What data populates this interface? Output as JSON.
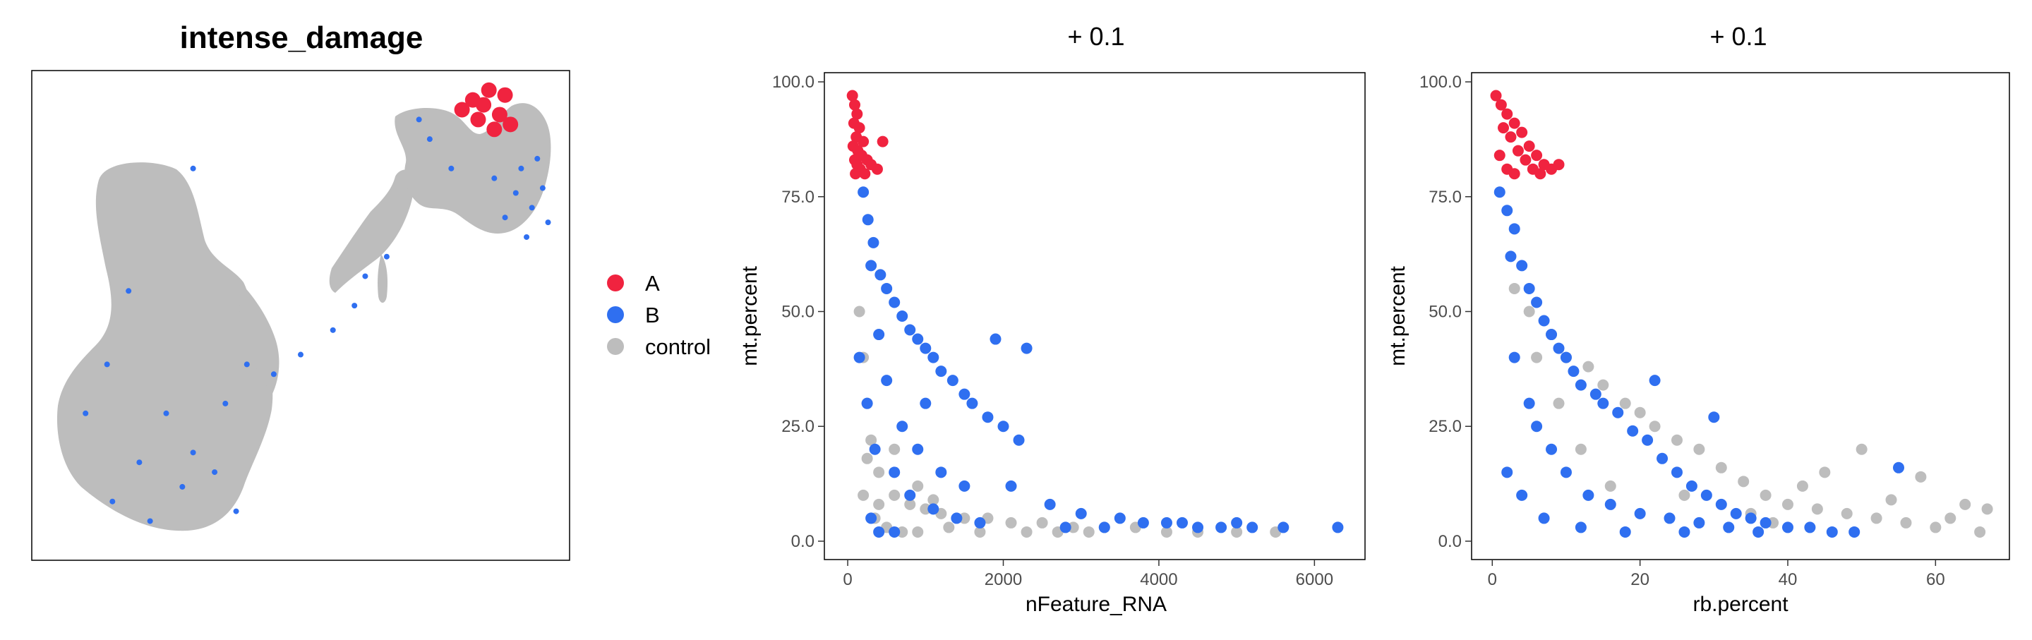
{
  "chart_data": [
    {
      "type": "scatter",
      "title": "intense_damage",
      "xlabel": "",
      "ylabel": "",
      "axes_visible": false,
      "legend_position": "right",
      "description_kind": "UMAP embedding",
      "series": [
        {
          "name": "A",
          "color": "#F0233F",
          "shape": "blob",
          "points": [
            [
              0.82,
              0.94
            ],
            [
              0.85,
              0.96
            ],
            [
              0.88,
              0.95
            ],
            [
              0.83,
              0.9
            ],
            [
              0.87,
              0.91
            ],
            [
              0.8,
              0.92
            ],
            [
              0.86,
              0.88
            ],
            [
              0.89,
              0.89
            ],
            [
              0.84,
              0.93
            ]
          ]
        },
        {
          "name": "B",
          "color": "#2F6FF0",
          "shape": "scatter",
          "points": [
            [
              0.9,
              0.75
            ],
            [
              0.93,
              0.72
            ],
            [
              0.95,
              0.76
            ],
            [
              0.88,
              0.7
            ],
            [
              0.92,
              0.66
            ],
            [
              0.96,
              0.69
            ],
            [
              0.86,
              0.78
            ],
            [
              0.91,
              0.8
            ],
            [
              0.94,
              0.82
            ],
            [
              0.78,
              0.8
            ],
            [
              0.74,
              0.86
            ],
            [
              0.72,
              0.9
            ],
            [
              0.66,
              0.62
            ],
            [
              0.62,
              0.58
            ],
            [
              0.6,
              0.52
            ],
            [
              0.56,
              0.47
            ],
            [
              0.5,
              0.42
            ],
            [
              0.45,
              0.38
            ],
            [
              0.4,
              0.4
            ],
            [
              0.36,
              0.32
            ],
            [
              0.3,
              0.22
            ],
            [
              0.28,
              0.15
            ],
            [
              0.2,
              0.2
            ],
            [
              0.15,
              0.12
            ],
            [
              0.1,
              0.3
            ],
            [
              0.22,
              0.08
            ],
            [
              0.25,
              0.3
            ],
            [
              0.34,
              0.18
            ],
            [
              0.18,
              0.55
            ],
            [
              0.3,
              0.8
            ],
            [
              0.14,
              0.4
            ],
            [
              0.38,
              0.1
            ]
          ]
        },
        {
          "name": "control",
          "color": "#BDBDBD",
          "shape": "regions"
        }
      ]
    },
    {
      "type": "scatter",
      "title": "+ 0.1",
      "xlabel": "nFeature_RNA",
      "ylabel": "mt.percent",
      "xlim": [
        -300,
        6650
      ],
      "ylim": [
        -4,
        102
      ],
      "xticks": [
        0,
        2000,
        4000,
        6000
      ],
      "xtick_labels": [
        "0",
        "2000",
        "4000",
        "6000"
      ],
      "yticks": [
        0,
        25,
        50,
        75,
        100
      ],
      "ytick_labels": [
        "0.0",
        "25.0",
        "50.0",
        "75.0",
        "100.0"
      ],
      "series": [
        {
          "name": "A",
          "color": "#F0233F",
          "points": [
            [
              60,
              97
            ],
            [
              90,
              95
            ],
            [
              120,
              93
            ],
            [
              80,
              91
            ],
            [
              150,
              90
            ],
            [
              110,
              88
            ],
            [
              200,
              87
            ],
            [
              70,
              86
            ],
            [
              130,
              85
            ],
            [
              180,
              84
            ],
            [
              90,
              83
            ],
            [
              250,
              83
            ],
            [
              120,
              82
            ],
            [
              300,
              82
            ],
            [
              160,
              81
            ],
            [
              380,
              81
            ],
            [
              100,
              80
            ],
            [
              220,
              80
            ],
            [
              450,
              87
            ]
          ]
        },
        {
          "name": "B",
          "color": "#2F6FF0",
          "points": [
            [
              200,
              76
            ],
            [
              260,
              70
            ],
            [
              330,
              65
            ],
            [
              300,
              60
            ],
            [
              420,
              58
            ],
            [
              500,
              55
            ],
            [
              600,
              52
            ],
            [
              700,
              49
            ],
            [
              800,
              46
            ],
            [
              900,
              44
            ],
            [
              1000,
              42
            ],
            [
              1100,
              40
            ],
            [
              1200,
              37
            ],
            [
              1350,
              35
            ],
            [
              1500,
              32
            ],
            [
              1600,
              30
            ],
            [
              1800,
              27
            ],
            [
              2000,
              25
            ],
            [
              2200,
              22
            ],
            [
              1000,
              30
            ],
            [
              900,
              20
            ],
            [
              1200,
              15
            ],
            [
              1500,
              12
            ],
            [
              1900,
              44
            ],
            [
              2300,
              42
            ],
            [
              2100,
              12
            ],
            [
              2600,
              8
            ],
            [
              3000,
              6
            ],
            [
              3500,
              5
            ],
            [
              3800,
              4
            ],
            [
              4100,
              4
            ],
            [
              4500,
              3
            ],
            [
              4800,
              3
            ],
            [
              5200,
              3
            ],
            [
              5600,
              3
            ],
            [
              6300,
              3
            ],
            [
              700,
              25
            ],
            [
              500,
              35
            ],
            [
              400,
              45
            ],
            [
              600,
              15
            ],
            [
              800,
              10
            ],
            [
              1100,
              7
            ],
            [
              1400,
              5
            ],
            [
              1700,
              4
            ],
            [
              300,
              5
            ],
            [
              400,
              2
            ],
            [
              600,
              2
            ],
            [
              2800,
              3
            ],
            [
              3300,
              3
            ],
            [
              4300,
              4
            ],
            [
              5000,
              4
            ],
            [
              150,
              40
            ],
            [
              250,
              30
            ],
            [
              350,
              20
            ]
          ]
        },
        {
          "name": "control",
          "color": "#BDBDBD",
          "points": [
            [
              150,
              50
            ],
            [
              200,
              40
            ],
            [
              250,
              30
            ],
            [
              300,
              22
            ],
            [
              400,
              15
            ],
            [
              600,
              10
            ],
            [
              800,
              8
            ],
            [
              1000,
              7
            ],
            [
              1200,
              6
            ],
            [
              1500,
              5
            ],
            [
              1800,
              5
            ],
            [
              2100,
              4
            ],
            [
              2500,
              4
            ],
            [
              2900,
              3
            ],
            [
              3300,
              3
            ],
            [
              3700,
              3
            ],
            [
              4100,
              2
            ],
            [
              4500,
              2
            ],
            [
              5000,
              2
            ],
            [
              5500,
              2
            ],
            [
              200,
              10
            ],
            [
              350,
              5
            ],
            [
              500,
              3
            ],
            [
              700,
              2
            ],
            [
              900,
              2
            ],
            [
              1300,
              3
            ],
            [
              1700,
              2
            ],
            [
              2300,
              2
            ],
            [
              2700,
              2
            ],
            [
              3100,
              2
            ],
            [
              600,
              20
            ],
            [
              900,
              12
            ],
            [
              1100,
              9
            ],
            [
              400,
              8
            ],
            [
              250,
              18
            ]
          ]
        }
      ]
    },
    {
      "type": "scatter",
      "title": "+ 0.1",
      "xlabel": "rb.percent",
      "ylabel": "mt.percent",
      "xlim": [
        -2.8,
        70
      ],
      "ylim": [
        -4,
        102
      ],
      "xticks": [
        0,
        20,
        40,
        60
      ],
      "xtick_labels": [
        "0",
        "20",
        "40",
        "60"
      ],
      "yticks": [
        0,
        25,
        50,
        75,
        100
      ],
      "ytick_labels": [
        "0.0",
        "25.0",
        "50.0",
        "75.0",
        "100.0"
      ],
      "series": [
        {
          "name": "A",
          "color": "#F0233F",
          "points": [
            [
              0.5,
              97
            ],
            [
              1.2,
              95
            ],
            [
              2,
              93
            ],
            [
              3,
              91
            ],
            [
              1.5,
              90
            ],
            [
              4,
              89
            ],
            [
              2.5,
              88
            ],
            [
              5,
              86
            ],
            [
              3.5,
              85
            ],
            [
              6,
              84
            ],
            [
              1,
              84
            ],
            [
              4.5,
              83
            ],
            [
              7,
              82
            ],
            [
              2,
              81
            ],
            [
              5.5,
              81
            ],
            [
              8,
              81
            ],
            [
              3,
              80
            ],
            [
              6.5,
              80
            ],
            [
              9,
              82
            ]
          ]
        },
        {
          "name": "B",
          "color": "#2F6FF0",
          "points": [
            [
              1,
              76
            ],
            [
              2,
              72
            ],
            [
              3,
              68
            ],
            [
              2.5,
              62
            ],
            [
              4,
              60
            ],
            [
              5,
              55
            ],
            [
              6,
              52
            ],
            [
              7,
              48
            ],
            [
              8,
              45
            ],
            [
              9,
              42
            ],
            [
              10,
              40
            ],
            [
              11,
              37
            ],
            [
              12,
              34
            ],
            [
              14,
              32
            ],
            [
              15,
              30
            ],
            [
              17,
              28
            ],
            [
              19,
              24
            ],
            [
              21,
              22
            ],
            [
              23,
              18
            ],
            [
              25,
              15
            ],
            [
              27,
              12
            ],
            [
              29,
              10
            ],
            [
              31,
              8
            ],
            [
              33,
              6
            ],
            [
              35,
              5
            ],
            [
              37,
              4
            ],
            [
              40,
              3
            ],
            [
              43,
              3
            ],
            [
              46,
              2
            ],
            [
              49,
              2
            ],
            [
              55,
              16
            ],
            [
              5,
              30
            ],
            [
              8,
              20
            ],
            [
              10,
              15
            ],
            [
              13,
              10
            ],
            [
              16,
              8
            ],
            [
              20,
              6
            ],
            [
              24,
              5
            ],
            [
              28,
              4
            ],
            [
              32,
              3
            ],
            [
              36,
              2
            ],
            [
              3,
              40
            ],
            [
              6,
              25
            ],
            [
              2,
              15
            ],
            [
              4,
              10
            ],
            [
              7,
              5
            ],
            [
              12,
              3
            ],
            [
              18,
              2
            ],
            [
              26,
              2
            ],
            [
              30,
              27
            ],
            [
              22,
              35
            ]
          ]
        },
        {
          "name": "control",
          "color": "#BDBDBD",
          "points": [
            [
              3,
              55
            ],
            [
              5,
              50
            ],
            [
              8,
              45
            ],
            [
              10,
              40
            ],
            [
              13,
              38
            ],
            [
              15,
              34
            ],
            [
              18,
              30
            ],
            [
              20,
              28
            ],
            [
              22,
              25
            ],
            [
              25,
              22
            ],
            [
              28,
              20
            ],
            [
              31,
              16
            ],
            [
              34,
              13
            ],
            [
              37,
              10
            ],
            [
              40,
              8
            ],
            [
              44,
              7
            ],
            [
              48,
              6
            ],
            [
              52,
              5
            ],
            [
              56,
              4
            ],
            [
              60,
              3
            ],
            [
              64,
              8
            ],
            [
              67,
              7
            ],
            [
              50,
              20
            ],
            [
              45,
              15
            ],
            [
              42,
              12
            ],
            [
              58,
              14
            ],
            [
              62,
              5
            ],
            [
              66,
              2
            ],
            [
              54,
              9
            ],
            [
              38,
              4
            ],
            [
              35,
              6
            ],
            [
              26,
              10
            ],
            [
              16,
              12
            ],
            [
              12,
              20
            ],
            [
              6,
              40
            ],
            [
              9,
              30
            ]
          ]
        }
      ]
    }
  ],
  "legend": {
    "entries": [
      {
        "label": "A",
        "color": "#F0233F"
      },
      {
        "label": "B",
        "color": "#2F6FF0"
      },
      {
        "label": "control",
        "color": "#BDBDBD"
      }
    ]
  }
}
